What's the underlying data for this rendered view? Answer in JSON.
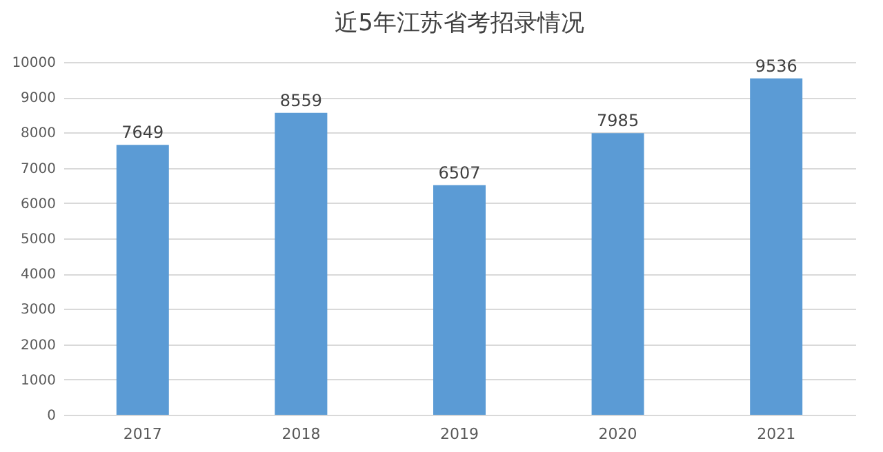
{
  "chart_data": {
    "type": "bar",
    "title": "近5年江苏省考招录情况",
    "categories": [
      "2017",
      "2018",
      "2019",
      "2020",
      "2021"
    ],
    "values": [
      7649,
      8559,
      6507,
      7985,
      9536
    ],
    "color": "#5b9bd5",
    "ylim": [
      0,
      10000
    ],
    "yticks": [
      0,
      1000,
      2000,
      3000,
      4000,
      5000,
      6000,
      7000,
      8000,
      9000,
      10000
    ],
    "grid": "y",
    "data_labels": true
  }
}
